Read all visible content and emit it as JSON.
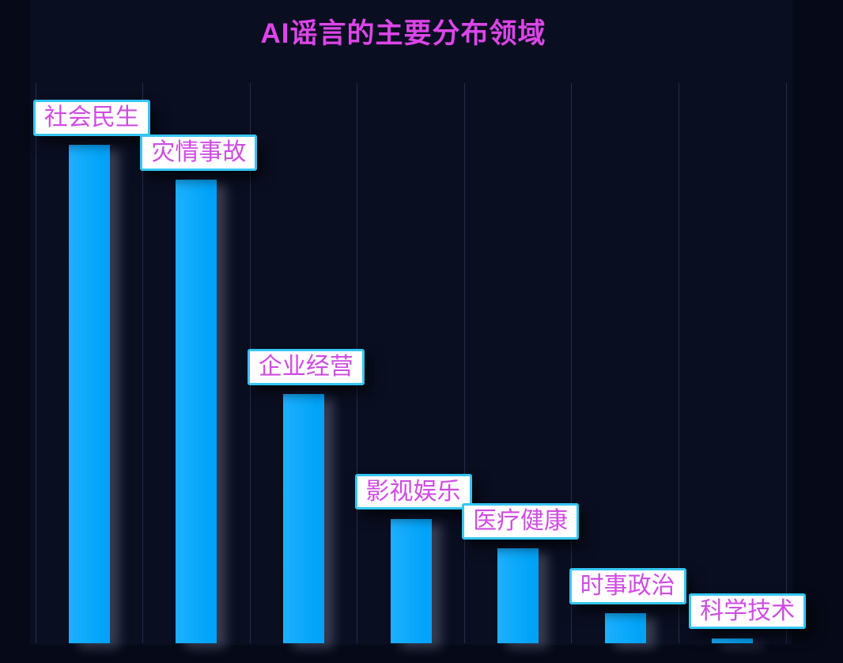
{
  "title": {
    "text": "AI谣言的主要分布领域"
  },
  "colors": {
    "page_background": "#060917",
    "plot_background": "#0a0e21",
    "gridline": "#272d49",
    "bar_fill": "#00a3f8",
    "bar_fill_light": "#1db0fe",
    "title_text": "#dc45e8",
    "label_text": "#cf4ce2",
    "label_border": "#35c6f4",
    "label_background": "#ffffff"
  },
  "chart_data": {
    "type": "bar",
    "title": "AI谣言的主要分布领域",
    "categories": [
      "社会民生",
      "灾情事故",
      "企业经营",
      "影视娱乐",
      "医疗健康",
      "时事政治",
      "科学技术"
    ],
    "values": [
      100,
      93,
      50,
      25,
      19,
      6,
      1
    ],
    "value_note": "no numeric axis shown; values are relative bar heights with tallest bar = 100",
    "xlabel": "",
    "ylabel": "",
    "ylim": [
      0,
      112
    ],
    "grid": "vertical gridlines only, 8 lines at category boundaries",
    "legend": "none",
    "orientation": "vertical",
    "bar_color": "#00a3f8",
    "category_label_style": "floating white box with cyan border and magenta text above each bar"
  }
}
